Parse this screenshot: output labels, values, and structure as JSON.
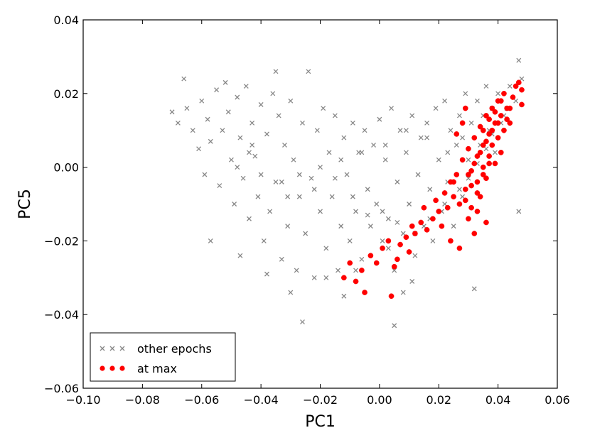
{
  "chart_data": {
    "type": "scatter",
    "title": "",
    "xlabel": "PC1",
    "ylabel": "PC5",
    "xlim": [
      -0.1,
      0.06
    ],
    "ylim": [
      -0.06,
      0.04
    ],
    "x_ticks": [
      -0.1,
      -0.08,
      -0.06,
      -0.04,
      -0.02,
      0.0,
      0.02,
      0.04,
      0.06
    ],
    "x_tick_labels": [
      "−0.10",
      "−0.08",
      "−0.06",
      "−0.04",
      "−0.02",
      "0.00",
      "0.02",
      "0.04",
      "0.06"
    ],
    "y_ticks": [
      -0.06,
      -0.04,
      -0.02,
      0.0,
      0.02,
      0.04
    ],
    "y_tick_labels": [
      "−0.06",
      "−0.04",
      "−0.02",
      "0.00",
      "0.02",
      "0.04"
    ],
    "grid": false,
    "legend_position": "lower-left",
    "series": [
      {
        "name": "other epochs",
        "marker": "x",
        "color": "#888888",
        "points": [
          [
            -0.07,
            0.015
          ],
          [
            -0.068,
            0.012
          ],
          [
            -0.066,
            0.024
          ],
          [
            -0.065,
            0.016
          ],
          [
            -0.063,
            0.01
          ],
          [
            -0.061,
            0.005
          ],
          [
            -0.06,
            0.018
          ],
          [
            -0.059,
            -0.002
          ],
          [
            -0.058,
            0.013
          ],
          [
            -0.057,
            0.007
          ],
          [
            -0.055,
            0.021
          ],
          [
            -0.054,
            -0.005
          ],
          [
            -0.052,
            0.023
          ],
          [
            -0.051,
            0.015
          ],
          [
            -0.05,
            0.002
          ],
          [
            -0.049,
            -0.01
          ],
          [
            -0.048,
            0.019
          ],
          [
            -0.047,
            0.008
          ],
          [
            -0.046,
            -0.003
          ],
          [
            -0.045,
            0.022
          ],
          [
            -0.044,
            -0.014
          ],
          [
            -0.043,
            0.012
          ],
          [
            -0.042,
            0.003
          ],
          [
            -0.041,
            -0.008
          ],
          [
            -0.04,
            0.017
          ],
          [
            -0.039,
            -0.02
          ],
          [
            -0.038,
            0.009
          ],
          [
            -0.037,
            -0.012
          ],
          [
            -0.036,
            0.02
          ],
          [
            -0.035,
            -0.004
          ],
          [
            -0.034,
            0.014
          ],
          [
            -0.033,
            -0.025
          ],
          [
            -0.032,
            0.006
          ],
          [
            -0.031,
            -0.016
          ],
          [
            -0.03,
            0.018
          ],
          [
            -0.029,
            0.002
          ],
          [
            -0.028,
            -0.028
          ],
          [
            -0.027,
            -0.008
          ],
          [
            -0.026,
            0.012
          ],
          [
            -0.025,
            -0.018
          ],
          [
            -0.024,
            0.026
          ],
          [
            -0.023,
            -0.003
          ],
          [
            -0.022,
            -0.03
          ],
          [
            -0.021,
            0.01
          ],
          [
            -0.02,
            -0.012
          ],
          [
            -0.019,
            0.016
          ],
          [
            -0.018,
            -0.022
          ],
          [
            -0.017,
            0.004
          ],
          [
            -0.016,
            -0.008
          ],
          [
            -0.015,
            0.014
          ],
          [
            -0.014,
            -0.028
          ],
          [
            -0.013,
            -0.016
          ],
          [
            -0.012,
            0.008
          ],
          [
            -0.011,
            -0.002
          ],
          [
            -0.01,
            -0.02
          ],
          [
            -0.009,
            0.012
          ],
          [
            -0.008,
            -0.012
          ],
          [
            -0.007,
            0.004
          ],
          [
            -0.006,
            -0.025
          ],
          [
            -0.005,
            0.01
          ],
          [
            -0.004,
            -0.006
          ],
          [
            -0.003,
            -0.016
          ],
          [
            -0.002,
            0.006
          ],
          [
            -0.001,
            -0.01
          ],
          [
            0.0,
            0.013
          ],
          [
            0.001,
            -0.02
          ],
          [
            0.002,
            0.002
          ],
          [
            0.003,
            -0.014
          ],
          [
            0.004,
            0.016
          ],
          [
            0.005,
            -0.028
          ],
          [
            0.006,
            -0.004
          ],
          [
            0.007,
            0.01
          ],
          [
            0.008,
            -0.018
          ],
          [
            0.009,
            0.004
          ],
          [
            0.01,
            -0.01
          ],
          [
            0.011,
            0.014
          ],
          [
            0.012,
            -0.024
          ],
          [
            0.013,
            -0.002
          ],
          [
            0.014,
            0.008
          ],
          [
            0.015,
            -0.016
          ],
          [
            0.016,
            0.012
          ],
          [
            0.017,
            -0.006
          ],
          [
            0.018,
            -0.02
          ],
          [
            0.019,
            0.016
          ],
          [
            0.02,
            0.002
          ],
          [
            0.021,
            -0.012
          ],
          [
            0.022,
            0.018
          ],
          [
            0.023,
            -0.004
          ],
          [
            0.024,
            0.01
          ],
          [
            0.025,
            -0.016
          ],
          [
            0.026,
            0.006
          ],
          [
            0.027,
            0.014
          ],
          [
            0.028,
            -0.008
          ],
          [
            0.029,
            0.02
          ],
          [
            0.03,
            0.002
          ],
          [
            0.031,
            0.012
          ],
          [
            0.032,
            -0.033
          ],
          [
            0.033,
            0.018
          ],
          [
            0.034,
            0.006
          ],
          [
            0.035,
            0.014
          ],
          [
            0.036,
            0.022
          ],
          [
            0.037,
            0.01
          ],
          [
            0.038,
            0.016
          ],
          [
            0.039,
            0.004
          ],
          [
            0.04,
            0.02
          ],
          [
            0.042,
            0.014
          ],
          [
            0.044,
            0.022
          ],
          [
            0.046,
            0.018
          ],
          [
            0.047,
            0.029
          ],
          [
            0.047,
            -0.012
          ],
          [
            0.048,
            0.024
          ],
          [
            -0.03,
            -0.034
          ],
          [
            -0.026,
            -0.042
          ],
          [
            -0.018,
            -0.03
          ],
          [
            0.005,
            -0.043
          ],
          [
            0.008,
            -0.034
          ],
          [
            0.011,
            -0.031
          ],
          [
            0.003,
            -0.022
          ],
          [
            -0.008,
            -0.028
          ],
          [
            -0.012,
            -0.035
          ],
          [
            -0.057,
            -0.02
          ],
          [
            -0.047,
            -0.024
          ],
          [
            -0.038,
            -0.029
          ],
          [
            -0.044,
            0.004
          ],
          [
            -0.053,
            0.01
          ],
          [
            -0.035,
            0.026
          ],
          [
            -0.043,
            0.006
          ],
          [
            -0.031,
            -0.008
          ],
          [
            -0.022,
            -0.006
          ],
          [
            -0.015,
            -0.003
          ],
          [
            -0.009,
            -0.008
          ],
          [
            -0.004,
            -0.013
          ],
          [
            0.001,
            -0.012
          ],
          [
            0.006,
            -0.015
          ],
          [
            0.012,
            -0.018
          ],
          [
            0.017,
            -0.014
          ],
          [
            0.022,
            -0.01
          ],
          [
            0.027,
            -0.006
          ],
          [
            0.03,
            -0.003
          ],
          [
            0.033,
            0.001
          ],
          [
            0.036,
            0.005
          ],
          [
            0.038,
            0.009
          ],
          [
            0.041,
            0.012
          ],
          [
            0.043,
            0.016
          ],
          [
            -0.048,
            0.0
          ],
          [
            -0.04,
            -0.002
          ],
          [
            -0.033,
            -0.004
          ],
          [
            -0.027,
            -0.002
          ],
          [
            -0.02,
            0.0
          ],
          [
            -0.013,
            0.002
          ],
          [
            -0.006,
            0.004
          ],
          [
            0.002,
            0.006
          ],
          [
            0.009,
            0.01
          ],
          [
            0.016,
            0.008
          ],
          [
            0.023,
            0.004
          ],
          [
            0.028,
            0.008
          ]
        ]
      },
      {
        "name": "at max",
        "marker": "o",
        "color": "#ff0000",
        "points": [
          [
            -0.012,
            -0.03
          ],
          [
            -0.01,
            -0.026
          ],
          [
            -0.008,
            -0.031
          ],
          [
            -0.006,
            -0.028
          ],
          [
            -0.005,
            -0.034
          ],
          [
            -0.003,
            -0.024
          ],
          [
            -0.001,
            -0.026
          ],
          [
            0.001,
            -0.022
          ],
          [
            0.003,
            -0.02
          ],
          [
            0.004,
            -0.035
          ],
          [
            0.005,
            -0.027
          ],
          [
            0.006,
            -0.025
          ],
          [
            0.007,
            -0.021
          ],
          [
            0.009,
            -0.019
          ],
          [
            0.01,
            -0.023
          ],
          [
            0.011,
            -0.016
          ],
          [
            0.012,
            -0.018
          ],
          [
            0.014,
            -0.015
          ],
          [
            0.015,
            -0.011
          ],
          [
            0.016,
            -0.017
          ],
          [
            0.018,
            -0.014
          ],
          [
            0.019,
            -0.009
          ],
          [
            0.02,
            -0.012
          ],
          [
            0.021,
            -0.016
          ],
          [
            0.022,
            -0.007
          ],
          [
            0.023,
            -0.011
          ],
          [
            0.024,
            -0.004
          ],
          [
            0.025,
            -0.008
          ],
          [
            0.026,
            -0.002
          ],
          [
            0.027,
            -0.01
          ],
          [
            0.028,
            0.002
          ],
          [
            0.029,
            -0.006
          ],
          [
            0.03,
            0.005
          ],
          [
            0.03,
            -0.014
          ],
          [
            0.031,
            -0.001
          ],
          [
            0.032,
            0.008
          ],
          [
            0.032,
            -0.018
          ],
          [
            0.033,
            0.003
          ],
          [
            0.033,
            -0.004
          ],
          [
            0.034,
            0.011
          ],
          [
            0.034,
            -0.008
          ],
          [
            0.035,
            0.006
          ],
          [
            0.035,
            0.0
          ],
          [
            0.036,
            0.014
          ],
          [
            0.036,
            -0.003
          ],
          [
            0.037,
            0.009
          ],
          [
            0.037,
            0.003
          ],
          [
            0.038,
            0.016
          ],
          [
            0.038,
            0.006
          ],
          [
            0.039,
            0.012
          ],
          [
            0.039,
            0.001
          ],
          [
            0.04,
            0.018
          ],
          [
            0.04,
            0.008
          ],
          [
            0.041,
            0.014
          ],
          [
            0.041,
            0.004
          ],
          [
            0.042,
            0.02
          ],
          [
            0.042,
            0.01
          ],
          [
            0.043,
            0.016
          ],
          [
            0.044,
            0.012
          ],
          [
            0.045,
            0.019
          ],
          [
            0.046,
            0.022
          ],
          [
            0.047,
            0.023
          ],
          [
            0.048,
            0.021
          ],
          [
            0.048,
            0.017
          ],
          [
            0.029,
            0.016
          ],
          [
            0.028,
            0.012
          ],
          [
            0.026,
            0.009
          ],
          [
            0.025,
            -0.004
          ],
          [
            0.024,
            -0.02
          ],
          [
            0.027,
            -0.022
          ],
          [
            0.036,
            -0.015
          ],
          [
            0.033,
            -0.007
          ],
          [
            0.031,
            -0.011
          ],
          [
            0.035,
            0.01
          ],
          [
            0.037,
            0.013
          ],
          [
            0.039,
            0.015
          ],
          [
            0.036,
            0.007
          ],
          [
            0.034,
            0.004
          ],
          [
            0.032,
            0.001
          ],
          [
            0.03,
            -0.002
          ],
          [
            0.038,
            0.01
          ],
          [
            0.04,
            0.012
          ],
          [
            0.041,
            0.018
          ],
          [
            0.043,
            0.013
          ],
          [
            0.044,
            0.016
          ],
          [
            0.037,
            0.001
          ],
          [
            0.035,
            -0.002
          ],
          [
            0.033,
            -0.012
          ],
          [
            0.031,
            -0.005
          ],
          [
            0.029,
            -0.009
          ]
        ]
      }
    ]
  }
}
